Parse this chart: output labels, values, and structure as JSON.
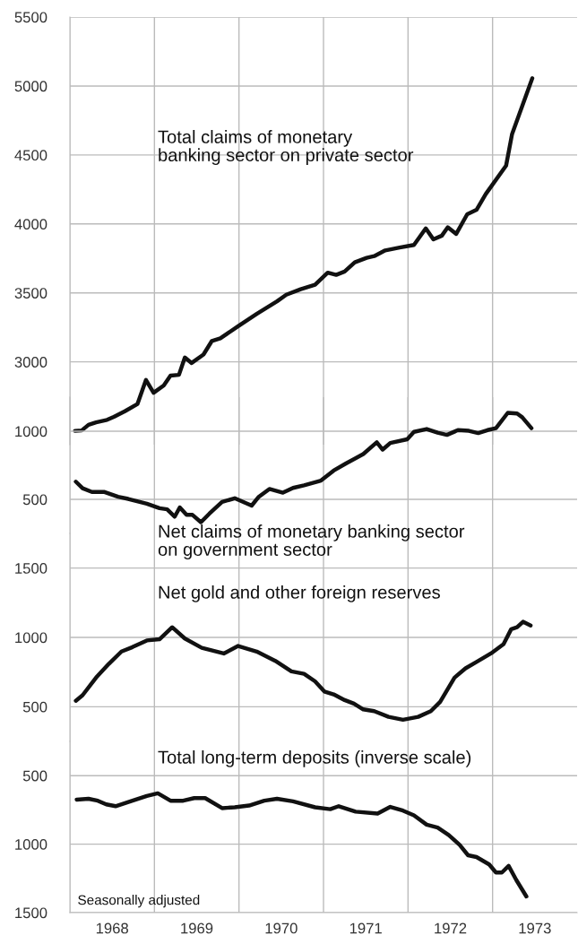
{
  "chart_data": [
    {
      "type": "line",
      "tick_labels": "y",
      "grid": true,
      "xlim": [
        1968,
        1974
      ],
      "xticks": [
        {
          "value": 1968,
          "label": null
        },
        {
          "value": 1969,
          "label": null
        },
        {
          "value": 1970,
          "label": null
        },
        {
          "value": 1971,
          "label": null
        },
        {
          "value": 1972,
          "label": null
        },
        {
          "value": 1973,
          "label": null
        }
      ],
      "ylim": [
        2400,
        5500
      ],
      "yticks": [
        3000,
        3500,
        4000,
        4500,
        5000,
        5500
      ],
      "series": [
        {
          "name": "Total claims of monetary\nbanking sector on private sector",
          "color": "#111111",
          "x": [
            1968.06,
            1968.14,
            1968.22,
            1968.31,
            1968.44,
            1968.52,
            1968.65,
            1968.8,
            1968.9,
            1968.99,
            1969.11,
            1969.19,
            1969.29,
            1969.36,
            1969.44,
            1969.58,
            1969.68,
            1969.78,
            1969.99,
            1970.21,
            1970.45,
            1970.56,
            1970.73,
            1970.9,
            1971.05,
            1971.15,
            1971.25,
            1971.37,
            1971.51,
            1971.6,
            1971.73,
            1971.9,
            1972.07,
            1972.21,
            1972.3,
            1972.4,
            1972.47,
            1972.57,
            1972.7,
            1972.81,
            1972.92,
            1973.16,
            1973.23,
            1973.47
          ],
          "values": [
            2500,
            2503,
            2544,
            2562,
            2580,
            2602,
            2642,
            2695,
            2869,
            2776,
            2829,
            2900,
            2906,
            3032,
            2992,
            3053,
            3152,
            3171,
            3259,
            3348,
            3439,
            3487,
            3527,
            3559,
            3647,
            3631,
            3655,
            3722,
            3754,
            3767,
            3808,
            3829,
            3848,
            3968,
            3888,
            3915,
            3976,
            3928,
            4070,
            4102,
            4217,
            4423,
            4650,
            5056
          ]
        }
      ]
    },
    {
      "type": "line",
      "tick_labels": "y",
      "grid": true,
      "xlim": [
        1968,
        1974
      ],
      "xticks": [
        {
          "value": 1968,
          "label": null
        },
        {
          "value": 1969,
          "label": null
        },
        {
          "value": 1970,
          "label": null
        },
        {
          "value": 1971,
          "label": null
        },
        {
          "value": 1972,
          "label": null
        },
        {
          "value": 1973,
          "label": null
        }
      ],
      "ylim": [
        250,
        1250
      ],
      "yticks": [
        500,
        1000
      ],
      "series": [
        {
          "name": "Net claims of monetary banking sector\non government sector",
          "color": "#111111",
          "x": [
            1968.07,
            1968.15,
            1968.26,
            1968.41,
            1968.57,
            1968.69,
            1968.91,
            1969.06,
            1969.15,
            1969.24,
            1969.3,
            1969.38,
            1969.45,
            1969.55,
            1969.65,
            1969.8,
            1969.95,
            1970.15,
            1970.23,
            1970.36,
            1970.52,
            1970.64,
            1970.77,
            1970.97,
            1971.12,
            1971.27,
            1971.47,
            1971.63,
            1971.7,
            1971.79,
            1971.99,
            1972.07,
            1972.22,
            1972.35,
            1972.46,
            1972.59,
            1972.72,
            1972.83,
            1972.94,
            1973.04,
            1973.18,
            1973.29,
            1973.35,
            1973.46
          ],
          "values": [
            630,
            581,
            554,
            554,
            519,
            503,
            468,
            435,
            427,
            373,
            441,
            386,
            386,
            332,
            395,
            481,
            508,
            454,
            516,
            576,
            549,
            584,
            603,
            638,
            711,
            765,
            832,
            919,
            865,
            914,
            941,
            995,
            1016,
            989,
            973,
            1008,
            1003,
            986,
            1008,
            1022,
            1135,
            1130,
            1103,
            1022
          ]
        }
      ]
    },
    {
      "type": "line",
      "tick_labels": "y",
      "grid": true,
      "xlim": [
        1968,
        1974
      ],
      "xticks": [
        {
          "value": 1968,
          "label": null
        },
        {
          "value": 1969,
          "label": null
        },
        {
          "value": 1970,
          "label": null
        },
        {
          "value": 1971,
          "label": null
        },
        {
          "value": 1972,
          "label": null
        },
        {
          "value": 1973,
          "label": null
        }
      ],
      "ylim": [
        250,
        1750
      ],
      "yticks": [
        500,
        1000,
        1500
      ],
      "series": [
        {
          "name": "Net gold and other foreign reserves",
          "color": "#111111",
          "x": [
            1968.07,
            1968.15,
            1968.31,
            1968.46,
            1968.61,
            1968.74,
            1968.91,
            1969.06,
            1969.21,
            1969.36,
            1969.56,
            1969.82,
            1969.99,
            1970.21,
            1970.43,
            1970.62,
            1970.77,
            1970.9,
            1971.01,
            1971.12,
            1971.25,
            1971.36,
            1971.47,
            1971.6,
            1971.77,
            1971.94,
            1972.12,
            1972.27,
            1972.38,
            1972.55,
            1972.68,
            1972.81,
            1972.98,
            1973.13,
            1973.22,
            1973.29,
            1973.36,
            1973.45
          ],
          "values": [
            543,
            583,
            710,
            809,
            898,
            930,
            978,
            987,
            1073,
            992,
            925,
            884,
            938,
            898,
            831,
            755,
            737,
            683,
            610,
            589,
            548,
            522,
            481,
            468,
            427,
            406,
            427,
            468,
            535,
            710,
            777,
            823,
            884,
            952,
            1059,
            1073,
            1113,
            1086
          ]
        }
      ]
    },
    {
      "type": "line",
      "grid": true,
      "xlim": [
        1968,
        1974
      ],
      "xticks": [
        {
          "value": 1968,
          "label": null
        },
        {
          "value": 1968.5,
          "label": "1968"
        },
        {
          "value": 1969,
          "label": null
        },
        {
          "value": 1969.5,
          "label": "1969"
        },
        {
          "value": 1970,
          "label": null
        },
        {
          "value": 1970.5,
          "label": "1970"
        },
        {
          "value": 1971,
          "label": null
        },
        {
          "value": 1971.5,
          "label": "1971"
        },
        {
          "value": 1972,
          "label": null
        },
        {
          "value": 1972.5,
          "label": "1972"
        },
        {
          "value": 1973,
          "label": null
        },
        {
          "value": 1973.5,
          "label": "1973"
        }
      ],
      "ylim": [
        1500,
        250
      ],
      "yticks": [
        500,
        1000,
        1500
      ],
      "annotations": [
        "Seasonally adjusted"
      ],
      "series": [
        {
          "name": "Total long-term deposits (inverse scale)",
          "color": "#111111",
          "x": [
            1968.08,
            1968.22,
            1968.33,
            1968.43,
            1968.54,
            1968.74,
            1968.91,
            1969.04,
            1969.19,
            1969.34,
            1969.47,
            1969.6,
            1969.8,
            1969.95,
            1970.12,
            1970.3,
            1970.45,
            1970.64,
            1970.9,
            1971.08,
            1971.18,
            1971.38,
            1971.64,
            1971.79,
            1971.94,
            1972.07,
            1972.22,
            1972.35,
            1972.48,
            1972.61,
            1972.71,
            1972.81,
            1972.96,
            1973.04,
            1973.11,
            1973.19,
            1973.28,
            1973.4
          ],
          "values": [
            675,
            669,
            683,
            710,
            723,
            683,
            648,
            629,
            683,
            683,
            664,
            664,
            737,
            731,
            718,
            683,
            669,
            688,
            731,
            745,
            723,
            763,
            777,
            728,
            755,
            790,
            858,
            879,
            933,
            1005,
            1081,
            1094,
            1148,
            1207,
            1207,
            1159,
            1261,
            1382
          ]
        }
      ]
    }
  ]
}
